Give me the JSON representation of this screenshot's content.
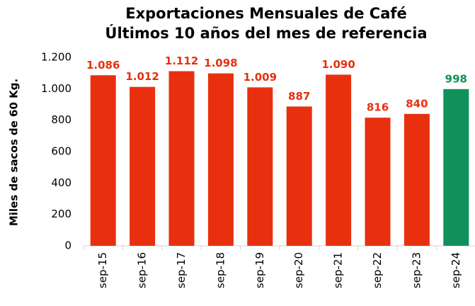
{
  "chart_data": {
    "type": "bar",
    "title": "Exportaciones Mensuales de Café",
    "subtitle": "Últimos 10 años del mes de referencia",
    "ylabel": "Miles de sacos de 60 Kg.",
    "categories": [
      "sep-15",
      "sep-16",
      "sep-17",
      "sep-18",
      "sep-19",
      "sep-20",
      "sep-21",
      "sep-22",
      "sep-23",
      "sep-24"
    ],
    "values": [
      1086,
      1012,
      1112,
      1098,
      1009,
      887,
      1090,
      816,
      840,
      998
    ],
    "value_labels": [
      "1.086",
      "1.012",
      "1.112",
      "1.098",
      "1.009",
      "887",
      "1.090",
      "816",
      "840",
      "998"
    ],
    "colors": [
      "#e8300f",
      "#e8300f",
      "#e8300f",
      "#e8300f",
      "#e8300f",
      "#e8300f",
      "#e8300f",
      "#e8300f",
      "#e8300f",
      "#0f9159"
    ],
    "ylim": [
      0,
      1200
    ],
    "yticks": [
      0,
      200,
      400,
      600,
      800,
      {
        "value": 1000,
        "label": "1.000"
      },
      {
        "value": 1200,
        "label": "1.200"
      }
    ],
    "grid": false
  }
}
